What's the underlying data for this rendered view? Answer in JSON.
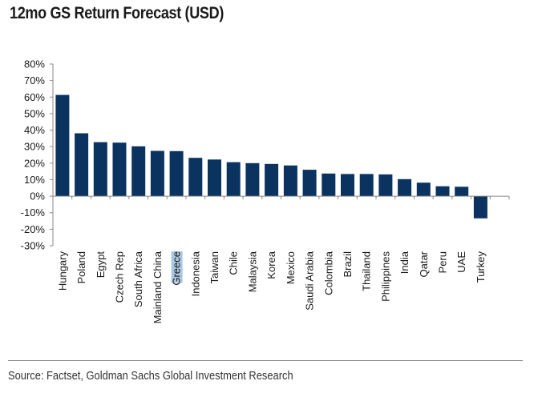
{
  "title": "12mo GS Return Forecast (USD)",
  "source": "Source: Factset, Goldman Sachs Global Investment Research",
  "colors": {
    "bar": "#0b3360",
    "axis": "#8a8a8a",
    "highlight": "#a9c6e3"
  },
  "highlighted_category": "Greece",
  "chart_data": {
    "type": "bar",
    "title": "12mo GS Return Forecast (USD)",
    "xlabel": "",
    "ylabel": "",
    "ylim": [
      -30,
      80
    ],
    "yticks": [
      80,
      70,
      60,
      50,
      40,
      30,
      20,
      10,
      0,
      -10,
      -20,
      -30
    ],
    "ytick_labels": [
      "80%",
      "70%",
      "60%",
      "50%",
      "40%",
      "30%",
      "20%",
      "10%",
      "0%",
      "-10%",
      "-20%",
      "-30%"
    ],
    "grid": false,
    "legend": "none",
    "categories": [
      "Hungary",
      "Poland",
      "Egypt",
      "Czech Rep",
      "South Africa",
      "Mainland China",
      "Greece",
      "Indonesia",
      "Taiwan",
      "Chile",
      "Malaysia",
      "Korea",
      "Mexico",
      "Saudi Arabia",
      "Colombia",
      "Brazil",
      "Thailand",
      "Philippines",
      "India",
      "Qatar",
      "Peru",
      "UAE",
      "Turkey"
    ],
    "values": [
      61.3,
      38.1,
      32.7,
      32.4,
      30.2,
      27.4,
      27.3,
      23.2,
      22.2,
      20.6,
      20.0,
      19.5,
      18.6,
      16.0,
      13.7,
      13.4,
      13.4,
      13.2,
      10.3,
      8.2,
      6.0,
      5.7,
      -13.4
    ],
    "unit": "%"
  }
}
